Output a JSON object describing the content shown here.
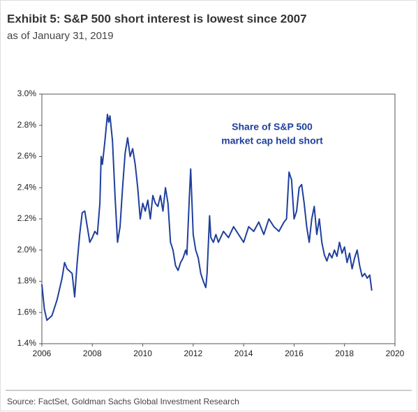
{
  "chart_data": {
    "type": "line",
    "title": "Exhibit 5: S&P 500 short interest is lowest since 2007",
    "subtitle": "as of January 31, 2019",
    "annotation": [
      "Share of S&P 500",
      "market cap held short"
    ],
    "source": "Source: FactSet, Goldman Sachs Global Investment Research",
    "x": [
      2006.0,
      2006.1,
      2006.2,
      2006.4,
      2006.6,
      2006.8,
      2006.9,
      2007.0,
      2007.2,
      2007.3,
      2007.4,
      2007.5,
      2007.6,
      2007.7,
      2007.8,
      2007.9,
      2008.0,
      2008.1,
      2008.2,
      2008.3,
      2008.35,
      2008.4,
      2008.5,
      2008.6,
      2008.65,
      2008.7,
      2008.8,
      2008.9,
      2009.0,
      2009.1,
      2009.2,
      2009.3,
      2009.4,
      2009.5,
      2009.6,
      2009.7,
      2009.8,
      2009.9,
      2010.0,
      2010.1,
      2010.2,
      2010.3,
      2010.4,
      2010.5,
      2010.6,
      2010.7,
      2010.8,
      2010.9,
      2011.0,
      2011.1,
      2011.2,
      2011.3,
      2011.4,
      2011.5,
      2011.6,
      2011.7,
      2011.75,
      2011.85,
      2011.9,
      2012.0,
      2012.1,
      2012.2,
      2012.3,
      2012.4,
      2012.5,
      2012.55,
      2012.65,
      2012.7,
      2012.8,
      2012.9,
      2013.0,
      2013.2,
      2013.4,
      2013.6,
      2013.8,
      2014.0,
      2014.2,
      2014.4,
      2014.6,
      2014.8,
      2015.0,
      2015.2,
      2015.4,
      2015.6,
      2015.7,
      2015.8,
      2015.9,
      2016.0,
      2016.1,
      2016.2,
      2016.3,
      2016.4,
      2016.5,
      2016.6,
      2016.7,
      2016.8,
      2016.9,
      2017.0,
      2017.1,
      2017.2,
      2017.3,
      2017.4,
      2017.5,
      2017.6,
      2017.7,
      2017.8,
      2017.9,
      2018.0,
      2018.1,
      2018.2,
      2018.3,
      2018.4,
      2018.5,
      2018.6,
      2018.7,
      2018.8,
      2018.9,
      2019.0,
      2019.08
    ],
    "series": [
      {
        "name": "Share of S&P 500 market cap held short",
        "color": "#1f3f9c",
        "values": [
          1.78,
          1.62,
          1.55,
          1.58,
          1.68,
          1.82,
          1.92,
          1.88,
          1.85,
          1.7,
          1.92,
          2.1,
          2.24,
          2.25,
          2.15,
          2.05,
          2.08,
          2.12,
          2.1,
          2.3,
          2.6,
          2.55,
          2.7,
          2.87,
          2.82,
          2.86,
          2.7,
          2.35,
          2.05,
          2.15,
          2.4,
          2.62,
          2.72,
          2.6,
          2.65,
          2.55,
          2.4,
          2.2,
          2.3,
          2.25,
          2.32,
          2.2,
          2.35,
          2.3,
          2.28,
          2.35,
          2.25,
          2.4,
          2.3,
          2.05,
          2.0,
          1.9,
          1.87,
          1.92,
          1.95,
          2.0,
          1.97,
          2.35,
          2.52,
          2.1,
          2.0,
          1.95,
          1.85,
          1.8,
          1.76,
          1.85,
          2.22,
          2.08,
          2.05,
          2.1,
          2.05,
          2.12,
          2.08,
          2.15,
          2.1,
          2.05,
          2.15,
          2.12,
          2.18,
          2.1,
          2.2,
          2.15,
          2.12,
          2.18,
          2.2,
          2.5,
          2.45,
          2.2,
          2.25,
          2.4,
          2.42,
          2.3,
          2.15,
          2.05,
          2.2,
          2.28,
          2.1,
          2.2,
          2.05,
          1.97,
          1.93,
          1.98,
          1.95,
          2.0,
          1.96,
          2.05,
          1.98,
          2.02,
          1.92,
          1.98,
          1.88,
          1.95,
          2.0,
          1.9,
          1.83,
          1.85,
          1.82,
          1.84,
          1.74
        ]
      }
    ],
    "xlim": [
      2006,
      2020
    ],
    "xticks": [
      2006,
      2008,
      2010,
      2012,
      2014,
      2016,
      2018,
      2020
    ],
    "ylim": [
      1.4,
      3.0
    ],
    "yticks": [
      {
        "value": 1.4,
        "label": "1.4%"
      },
      {
        "value": 1.6,
        "label": "1.6%"
      },
      {
        "value": 1.8,
        "label": "1.8%"
      },
      {
        "value": 2.0,
        "label": "2.0%"
      },
      {
        "value": 2.2,
        "label": "2.2%"
      },
      {
        "value": 2.4,
        "label": "2.4%"
      },
      {
        "value": 2.6,
        "label": "2.6%"
      },
      {
        "value": 2.8,
        "label": "2.8%"
      },
      {
        "value": 3.0,
        "label": "3.0%"
      }
    ],
    "grid": false
  }
}
